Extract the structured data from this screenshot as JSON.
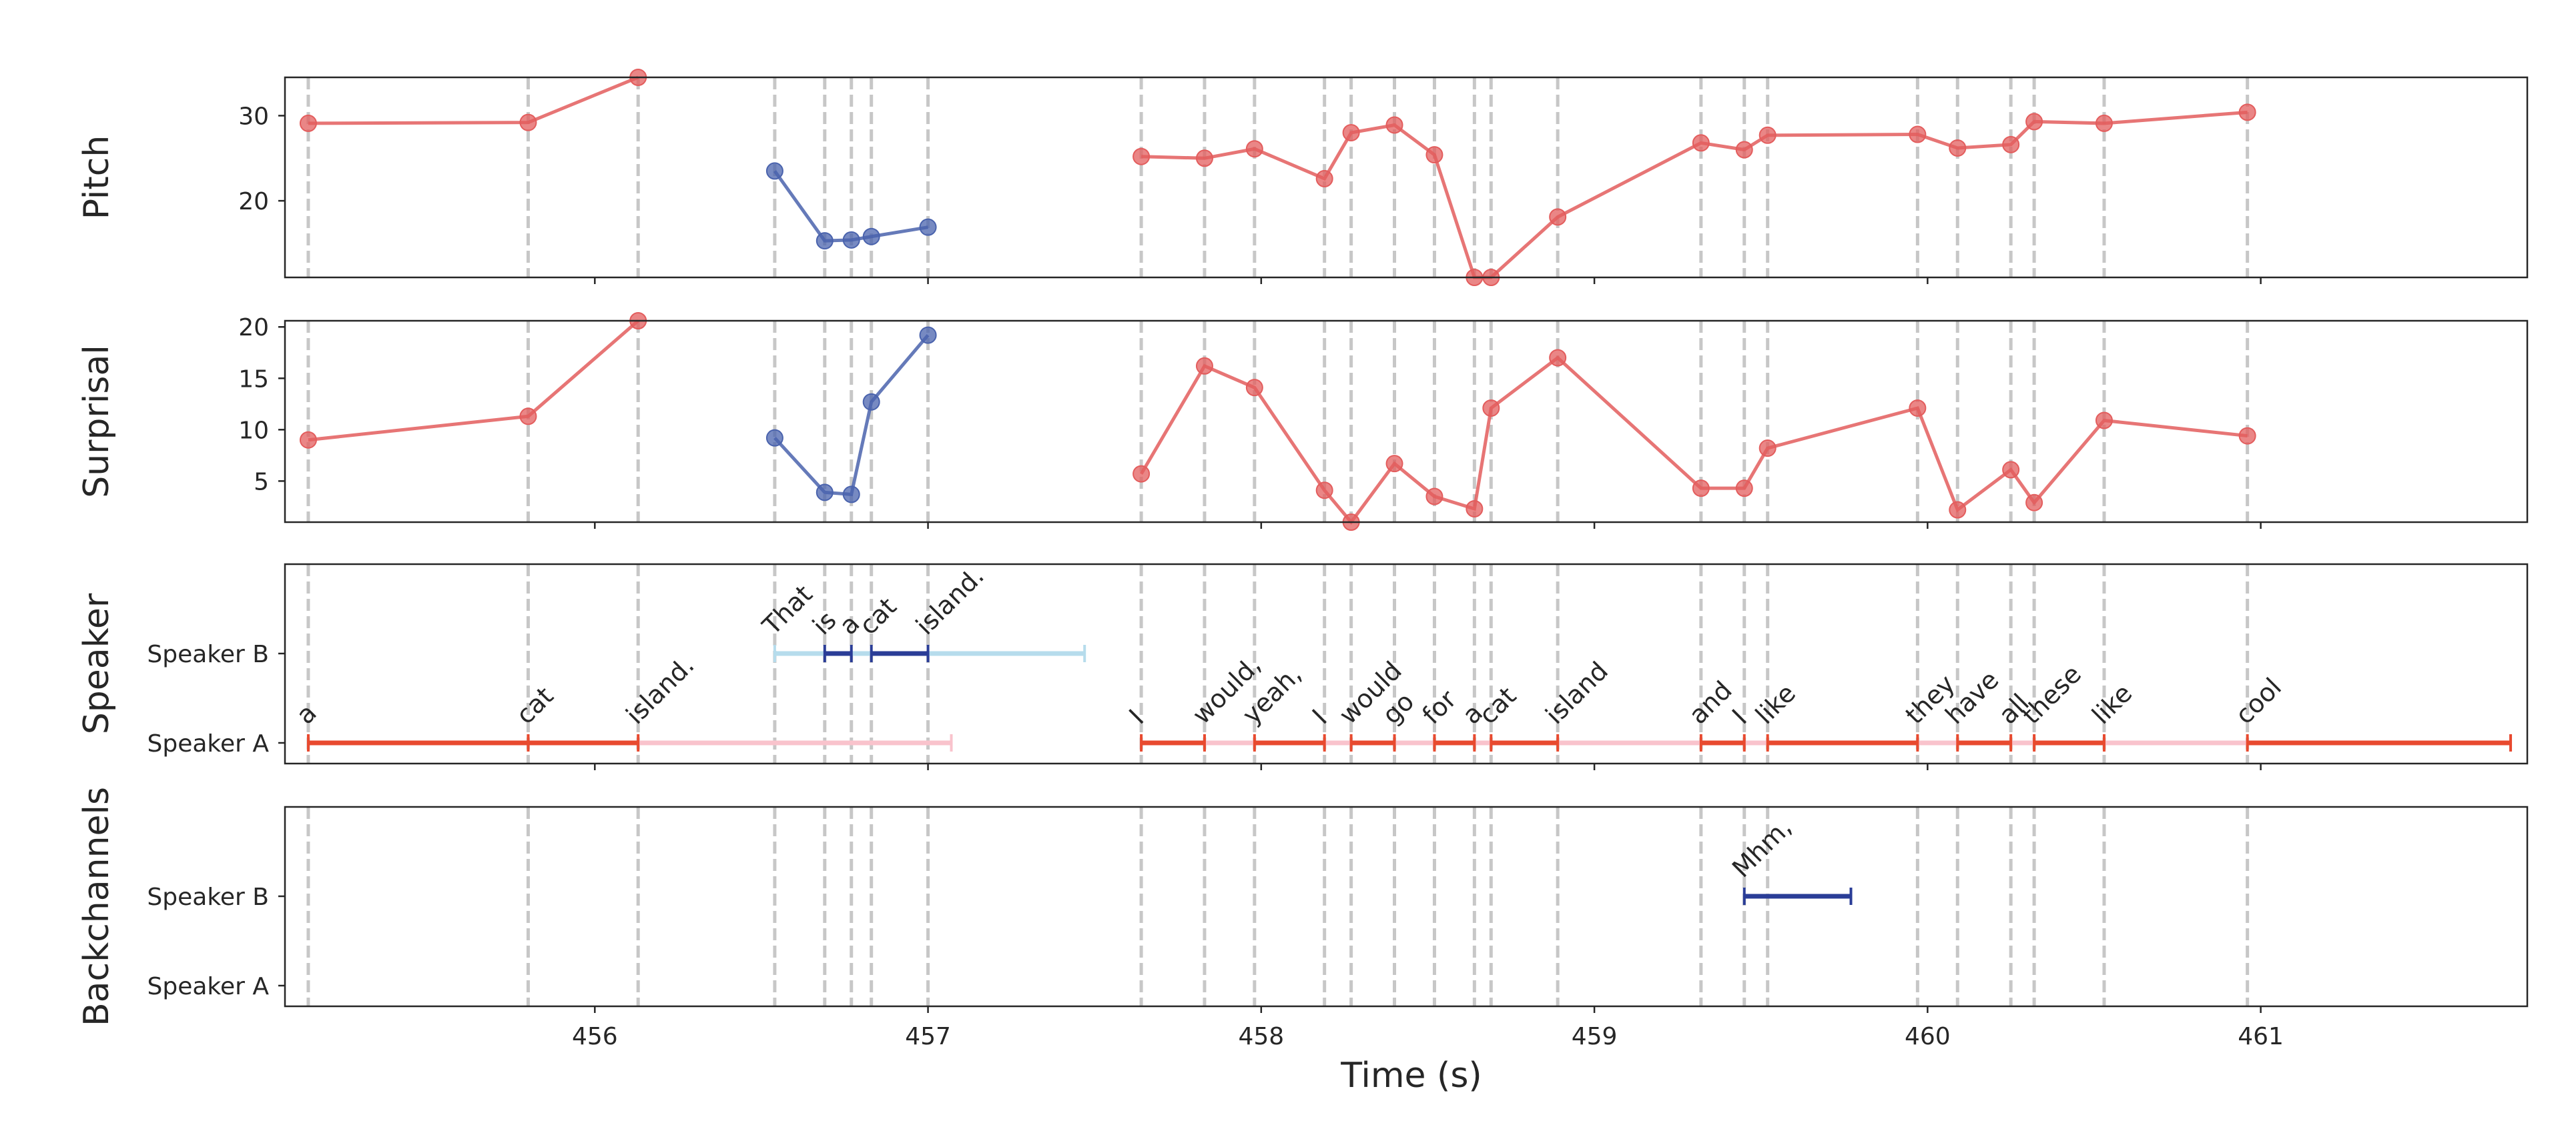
{
  "chart_data": {
    "type": "line",
    "xlabel": "Time (s)",
    "xlim": [
      455.07,
      461.8
    ],
    "x_ticks": [
      456,
      457,
      458,
      459,
      460,
      461
    ],
    "word_boundaries": [
      455.14,
      455.8,
      456.13,
      456.54,
      456.69,
      456.77,
      456.83,
      457.0,
      457.64,
      457.83,
      457.98,
      458.19,
      458.27,
      458.4,
      458.52,
      458.64,
      458.69,
      458.89,
      459.32,
      459.45,
      459.52,
      459.97,
      460.09,
      460.25,
      460.32,
      460.53,
      460.96
    ],
    "colors": {
      "speaker_a": "#e35d5d",
      "speaker_b": "#4a63ad",
      "speaker_a_light": "#f9c3cc",
      "speaker_b_light": "#b6dcec",
      "speaker_a_word": "#e84a2f",
      "speaker_b_word": "#2a3d97"
    },
    "panels": [
      {
        "id": "pitch",
        "ylabel": "Pitch",
        "ylim": [
          11,
          34.5
        ],
        "y_ticks": [
          20,
          30
        ],
        "series": [
          {
            "speaker": "A",
            "x": [
              455.14,
              455.8,
              456.13
            ],
            "y": [
              29.1,
              29.2,
              34.5
            ]
          },
          {
            "speaker": "B",
            "x": [
              456.54,
              456.69,
              456.77,
              456.83,
              457.0
            ],
            "y": [
              23.5,
              15.3,
              15.4,
              15.8,
              16.9
            ]
          },
          {
            "speaker": "A",
            "x": [
              457.64,
              457.83,
              457.98,
              458.19,
              458.27,
              458.4,
              458.52,
              458.64,
              458.69,
              458.89,
              459.32,
              459.45,
              459.52,
              459.97,
              460.09,
              460.25,
              460.32,
              460.53,
              460.96
            ],
            "y": [
              25.2,
              25.0,
              26.1,
              22.6,
              28.0,
              28.9,
              25.4,
              11.0,
              11.0,
              18.1,
              26.8,
              26.0,
              27.7,
              27.8,
              26.2,
              26.6,
              29.3,
              29.1,
              30.4
            ]
          }
        ]
      },
      {
        "id": "surprisal",
        "ylabel": "Surprisal",
        "ylim": [
          1,
          20.6
        ],
        "y_ticks": [
          5,
          10,
          15,
          20
        ],
        "series": [
          {
            "speaker": "A",
            "x": [
              455.14,
              455.8,
              456.13
            ],
            "y": [
              9.0,
              11.3,
              20.6
            ]
          },
          {
            "speaker": "B",
            "x": [
              456.54,
              456.69,
              456.77,
              456.83,
              457.0
            ],
            "y": [
              9.2,
              3.9,
              3.7,
              12.7,
              19.2
            ]
          },
          {
            "speaker": "A",
            "x": [
              457.64,
              457.83,
              457.98,
              458.19,
              458.27,
              458.4,
              458.52,
              458.64,
              458.69,
              458.89,
              459.32,
              459.45,
              459.52,
              459.97,
              460.09,
              460.25,
              460.32,
              460.53,
              460.96
            ],
            "y": [
              5.7,
              16.2,
              14.1,
              4.1,
              1.0,
              6.7,
              3.5,
              2.3,
              12.1,
              17.0,
              4.3,
              4.3,
              8.2,
              12.1,
              2.2,
              6.1,
              2.9,
              10.9,
              9.4
            ]
          }
        ]
      }
    ],
    "speaker_panel": {
      "ylabel": "Speaker",
      "rows": [
        "Speaker B",
        "Speaker A"
      ],
      "turns": [
        {
          "speaker": "A",
          "start": 455.14,
          "end": 457.07
        },
        {
          "speaker": "B",
          "start": 456.54,
          "end": 457.47
        },
        {
          "speaker": "A",
          "start": 457.64,
          "end": 461.75
        }
      ],
      "words": [
        {
          "speaker": "A",
          "text": "a",
          "start": 455.14,
          "end": 455.8
        },
        {
          "speaker": "A",
          "text": "cat",
          "start": 455.8,
          "end": 456.13
        },
        {
          "speaker": "A",
          "text": "island.",
          "start": 456.13,
          "end": 456.13
        },
        {
          "speaker": "B",
          "text": "That",
          "start": 456.54,
          "end": 456.54
        },
        {
          "speaker": "B",
          "text": "is",
          "start": 456.69,
          "end": 456.77
        },
        {
          "speaker": "B",
          "text": "a",
          "start": 456.77,
          "end": 456.77
        },
        {
          "speaker": "B",
          "text": "cat",
          "start": 456.83,
          "end": 457.0
        },
        {
          "speaker": "B",
          "text": "island.",
          "start": 457.0,
          "end": 457.0
        },
        {
          "speaker": "A",
          "text": "I",
          "start": 457.64,
          "end": 457.83
        },
        {
          "speaker": "A",
          "text": "would,",
          "start": 457.83,
          "end": 457.83
        },
        {
          "speaker": "A",
          "text": "yeah,",
          "start": 457.98,
          "end": 458.19
        },
        {
          "speaker": "A",
          "text": "I",
          "start": 458.19,
          "end": 458.19
        },
        {
          "speaker": "A",
          "text": "would",
          "start": 458.27,
          "end": 458.4
        },
        {
          "speaker": "A",
          "text": "go",
          "start": 458.4,
          "end": 458.4
        },
        {
          "speaker": "A",
          "text": "for",
          "start": 458.52,
          "end": 458.64
        },
        {
          "speaker": "A",
          "text": "a",
          "start": 458.64,
          "end": 458.64
        },
        {
          "speaker": "A",
          "text": "cat",
          "start": 458.69,
          "end": 458.89
        },
        {
          "speaker": "A",
          "text": "island",
          "start": 458.89,
          "end": 458.89
        },
        {
          "speaker": "A",
          "text": "and",
          "start": 459.32,
          "end": 459.45
        },
        {
          "speaker": "A",
          "text": "I",
          "start": 459.45,
          "end": 459.45
        },
        {
          "speaker": "A",
          "text": "like",
          "start": 459.52,
          "end": 459.97
        },
        {
          "speaker": "A",
          "text": "they",
          "start": 459.97,
          "end": 459.97
        },
        {
          "speaker": "A",
          "text": "have",
          "start": 460.09,
          "end": 460.25
        },
        {
          "speaker": "A",
          "text": "all",
          "start": 460.25,
          "end": 460.25
        },
        {
          "speaker": "A",
          "text": "these",
          "start": 460.32,
          "end": 460.53
        },
        {
          "speaker": "A",
          "text": "like",
          "start": 460.53,
          "end": 460.53
        },
        {
          "speaker": "A",
          "text": "cool",
          "start": 460.96,
          "end": 461.75
        }
      ]
    },
    "backchannel_panel": {
      "ylabel": "Backchannels",
      "rows": [
        "Speaker B",
        "Speaker A"
      ],
      "items": [
        {
          "speaker": "B",
          "text": "Mhm,",
          "start": 459.45,
          "end": 459.77
        }
      ]
    }
  }
}
